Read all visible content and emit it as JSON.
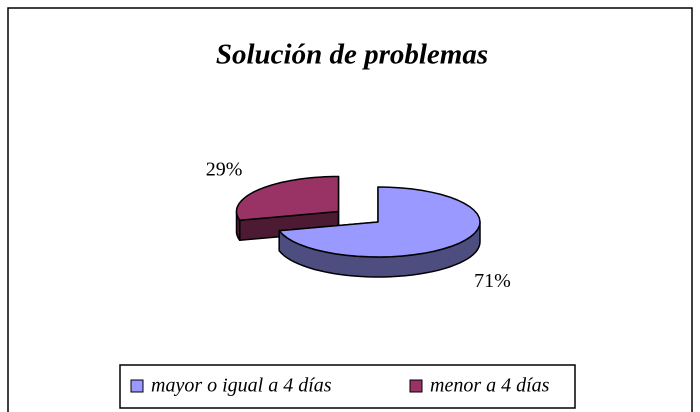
{
  "chart_data": {
    "type": "pie3d",
    "title": "Solución de problemas",
    "categories": [
      "mayor o igual a 4 días",
      "menor a 4 días"
    ],
    "values": [
      71,
      29
    ],
    "value_labels": [
      "71%",
      "29%"
    ],
    "colors": [
      "#9999ff",
      "#993366"
    ],
    "side_colors": [
      "#4d4d80",
      "#4d1a33"
    ],
    "exploded": [
      false,
      true
    ],
    "legend": "bottom"
  }
}
